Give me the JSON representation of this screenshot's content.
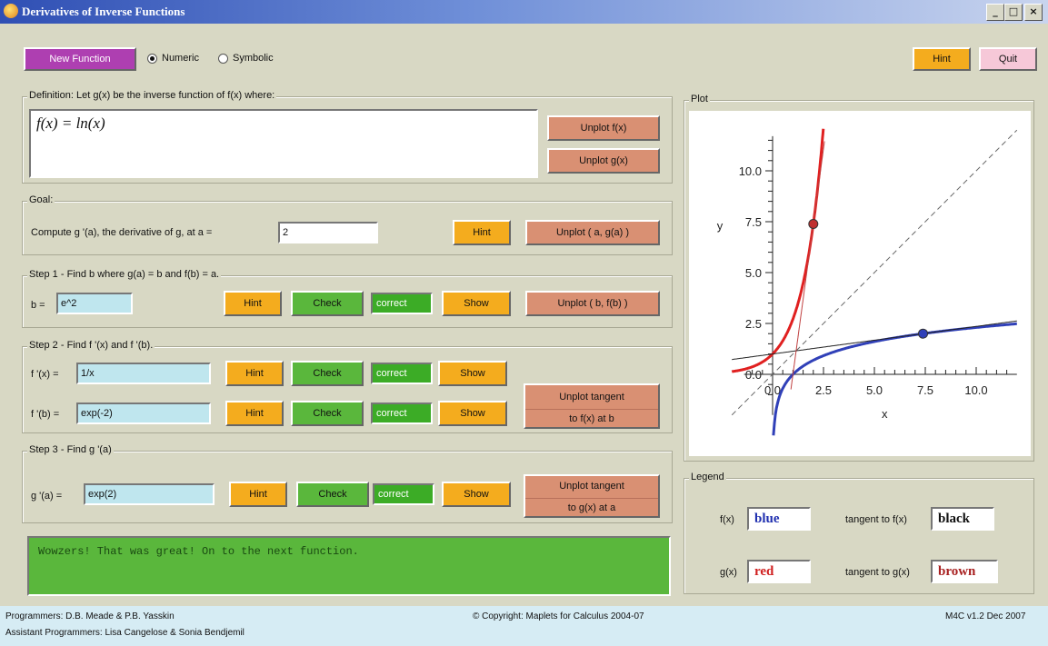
{
  "window": {
    "title": "Derivatives of Inverse Functions",
    "min": "_",
    "max": "□",
    "close": "×"
  },
  "top": {
    "new_function": "New Function",
    "mode_numeric": "Numeric",
    "mode_symbolic": "Symbolic",
    "selected_mode": "Numeric",
    "hint": "Hint",
    "quit": "Quit"
  },
  "definition": {
    "label": "Definition: Let  g(x)  be the inverse function of  f(x)  where:",
    "function": "f(x) = ln(x)",
    "unplot_f": "Unplot f(x)",
    "unplot_g": "Unplot g(x)"
  },
  "goal": {
    "label": "Goal:",
    "text": "Compute  g '(a), the derivative of  g,  at  a =",
    "a_value": "2",
    "hint": "Hint",
    "unplot": "Unplot ( a, g(a) )"
  },
  "step1": {
    "label": "Step 1 - Find  b  where  g(a) = b  and  f(b) = a.",
    "b_label": "b =",
    "b_value": "e^2",
    "hint": "Hint",
    "check": "Check",
    "status": "correct",
    "show": "Show",
    "unplot": "Unplot ( b, f(b) )"
  },
  "step2": {
    "label": "Step 2 - Find  f '(x)  and  f '(b).",
    "fpx_label": "f '(x) =",
    "fpx_value": "1/x",
    "fpb_label": "f '(b) =",
    "fpb_value": "exp(-2)",
    "hint": "Hint",
    "check": "Check",
    "status": "correct",
    "show": "Show",
    "unplot_line1": "Unplot tangent",
    "unplot_line2": "to f(x) at b"
  },
  "step3": {
    "label": "Step 3 - Find  g '(a)",
    "gpa_label": "g '(a)  =",
    "gpa_value": "exp(2)",
    "hint": "Hint",
    "check": "Check",
    "status": "correct",
    "show": "Show",
    "unplot_line1": "Unplot tangent",
    "unplot_line2": "to g(x) at a"
  },
  "message": "Wowzers! That was great! On to the next function.",
  "plot": {
    "label": "Plot"
  },
  "chart_data": {
    "type": "line",
    "title": "",
    "xlabel": "x",
    "ylabel": "y",
    "xlim": [
      -2,
      12
    ],
    "ylim": [
      -2,
      12
    ],
    "xticks": [
      0.0,
      2.5,
      5.0,
      7.5,
      10.0
    ],
    "xtick_labels": [
      "0.0",
      "2.5",
      "5.0",
      "7.5",
      "10.0"
    ],
    "yticks": [
      0.0,
      2.5,
      5.0,
      7.5,
      10.0
    ],
    "ytick_labels": [
      "0.0",
      "2.5",
      "5.0",
      "7.5",
      "10.0"
    ],
    "grid": false,
    "series": [
      {
        "curve": "ln(x)",
        "color": "#3040b8"
      },
      {
        "curve": "exp(x)",
        "color": "#e02020"
      },
      {
        "curve": "y = x",
        "color": "#666666",
        "dashed": true
      },
      {
        "curve": "tangent to f(x) at b",
        "color": "#222222"
      },
      {
        "curve": "tangent to g(x) at a",
        "color": "#c04040"
      }
    ],
    "points": [
      {
        "x": 7.389,
        "y": 2,
        "color": "#3040b8"
      },
      {
        "x": 2,
        "y": 7.389,
        "color": "#c03030"
      }
    ]
  },
  "legend": {
    "label": "Legend",
    "f_label": "f(x)",
    "f_value": "blue",
    "g_label": "g(x)",
    "g_value": "red",
    "tf_label": "tangent to f(x)",
    "tf_value": "black",
    "tg_label": "tangent to g(x)",
    "tg_value": "brown"
  },
  "footer": {
    "programmers": "Programmers: D.B. Meade & P.B. Yasskin",
    "assistants": "Assistant Programmers: Lisa Cangelose & Sonia Bendjemil",
    "copyright": "© Copyright: Maplets for Calculus 2004-07",
    "version": "M4C v1.2 Dec 2007"
  }
}
